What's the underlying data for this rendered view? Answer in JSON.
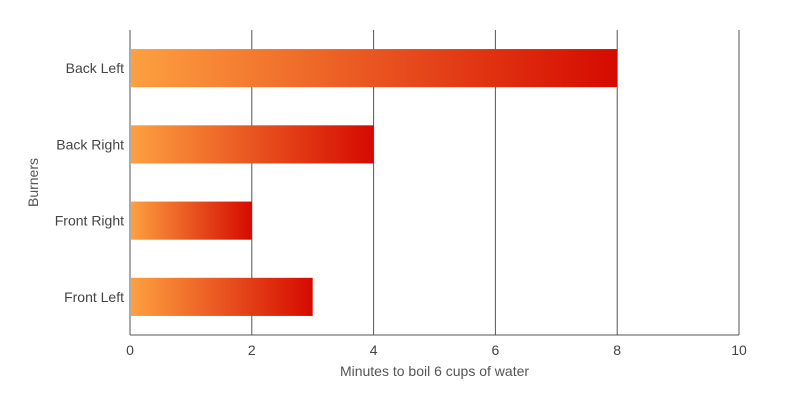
{
  "chart_data": {
    "type": "bar",
    "orientation": "horizontal",
    "categories": [
      "Back Left",
      "Back Right",
      "Front Right",
      "Front Left"
    ],
    "values": [
      8,
      4,
      2,
      3
    ],
    "xlabel": "Minutes to boil 6 cups of water",
    "ylabel": "Burners",
    "xlim": [
      0,
      10
    ],
    "xticks": [
      "0",
      "2",
      "4",
      "6",
      "8",
      "10"
    ],
    "grid": "vertical",
    "bar_gradient": [
      "#fda040",
      "#d50a00"
    ]
  }
}
